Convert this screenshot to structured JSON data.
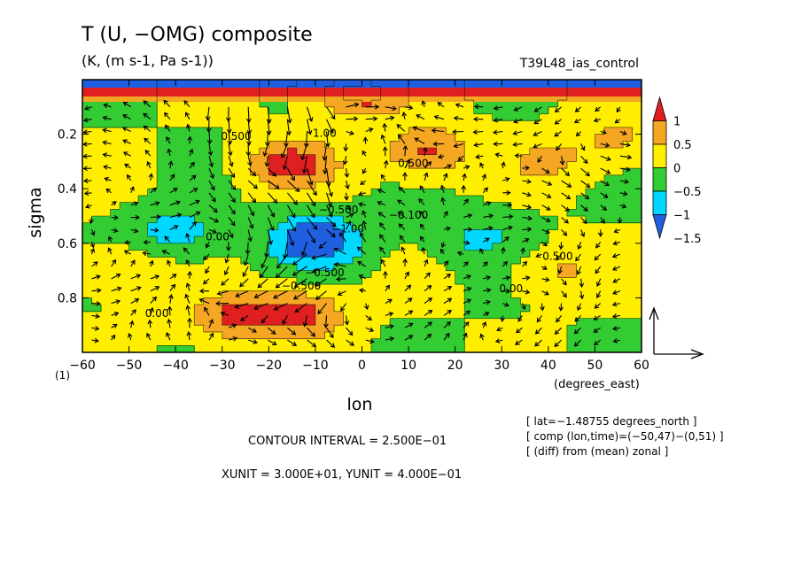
{
  "chart_data": {
    "type": "heatmap",
    "title": "T (U, −OMG) composite",
    "subtitle": "(K, (m s-1, Pa s-1))",
    "experiment": "T39L48_ias_control",
    "xlabel": "lon",
    "xunit": "(degrees_east)",
    "ylabel": "sigma",
    "corner_label": "(1)",
    "xlim": [
      -60,
      60
    ],
    "ylim": [
      1.0,
      0.0
    ],
    "xticks": [
      -60,
      -50,
      -40,
      -30,
      -20,
      -10,
      0,
      10,
      20,
      30,
      40,
      50,
      60
    ],
    "xtick_labels": [
      "−60",
      "−50",
      "−40",
      "−30",
      "−20",
      "−10",
      "0",
      "10",
      "20",
      "30",
      "40",
      "50",
      "60"
    ],
    "yticks": [
      0.2,
      0.4,
      0.6,
      0.8
    ],
    "ytick_labels": [
      "0.2",
      "0.4",
      "0.6",
      "0.8"
    ],
    "colorbar": {
      "levels": [
        -1.5,
        -1,
        -0.5,
        0,
        0.5,
        1
      ],
      "labels": [
        "−1.5",
        "−1",
        "−0.5",
        "0",
        "0.5",
        "1"
      ],
      "colors": [
        "#1f5fe0",
        "#00d8ff",
        "#33cc33",
        "#ffee00",
        "#f5a623",
        "#e02020"
      ]
    },
    "anomaly_centers": [
      {
        "lon": -15,
        "sigma": 0.31,
        "value": 1.25
      },
      {
        "lon": 14,
        "sigma": 0.26,
        "value": 1.1
      },
      {
        "lon": 40,
        "sigma": 0.3,
        "value": 0.6
      },
      {
        "lon": 55,
        "sigma": 0.21,
        "value": 0.6
      },
      {
        "lon": -10,
        "sigma": 0.59,
        "value": -1.6
      },
      {
        "lon": -40,
        "sigma": 0.56,
        "value": -0.8
      },
      {
        "lon": 25,
        "sigma": 0.58,
        "value": -0.6
      },
      {
        "lon": -50,
        "sigma": 0.7,
        "value": 0.6
      },
      {
        "lon": 42,
        "sigma": 0.7,
        "value": 0.55
      },
      {
        "lon": -27,
        "sigma": 0.87,
        "value": 1.1
      },
      {
        "lon": -13,
        "sigma": 0.86,
        "value": 1.1
      },
      {
        "lon": 0,
        "sigma": 0.05,
        "value": 1.2
      }
    ],
    "contour_labels": [
      "0.500",
      "1.00",
      "−0.500",
      "0.00",
      "−1.00",
      "0.500",
      "−0.500",
      "0.500",
      "0.00",
      "0.00",
      "−0.500",
      "−0.100"
    ],
    "reference_vector": {
      "u": 30.0,
      "omg": 0.4
    },
    "contour_interval_text": "CONTOUR INTERVAL = 2.500E−01",
    "units_text": "XUNIT = 3.000E+01, YUNIT = 4.000E−01",
    "notes": [
      "[ lat=−1.48755 degrees_north ]",
      "[ comp (lon,time)=(−50,47)−(0,51) ]",
      "[ (diff) from (mean) zonal ]"
    ]
  }
}
